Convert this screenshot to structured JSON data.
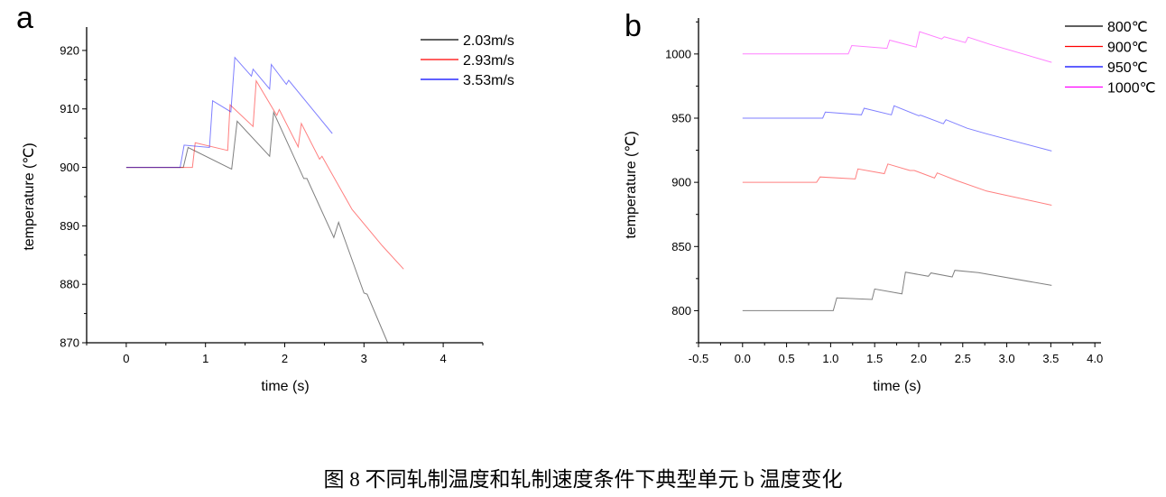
{
  "caption": "图 8  不同轧制温度和轧制速度条件下典型单元 b 温度变化",
  "chart_data": [
    {
      "panel": "a",
      "type": "line",
      "xlabel": "time (s)",
      "ylabel": "temperature (℃)",
      "xlim": [
        -0.5,
        4.5
      ],
      "ylim": [
        870,
        924
      ],
      "xticks": [
        0,
        1,
        2,
        3,
        4
      ],
      "yticks": [
        870,
        880,
        890,
        900,
        910,
        920
      ],
      "grid": false,
      "legend_position": "top-right",
      "series": [
        {
          "name": "2.03m/s",
          "color": "#000000",
          "x": [
            0,
            0.72,
            0.78,
            1.33,
            1.4,
            1.81,
            1.86,
            2.24,
            2.28,
            2.62,
            2.68,
            3.0,
            3.04,
            3.3
          ],
          "y": [
            900,
            900,
            903.4,
            899.7,
            907.9,
            901.9,
            909.4,
            898.1,
            898.1,
            888.0,
            890.6,
            878.5,
            878.3,
            870
          ]
        },
        {
          "name": "2.93m/s",
          "color": "#ff0000",
          "x": [
            0,
            0.835,
            0.87,
            1.28,
            1.31,
            1.6,
            1.64,
            1.9,
            1.93,
            2.17,
            2.21,
            2.44,
            2.47,
            2.85,
            3.23,
            3.5
          ],
          "y": [
            900,
            900,
            904.2,
            902.9,
            910.7,
            907.0,
            914.8,
            908.9,
            909.9,
            903.5,
            907.5,
            901.4,
            901.9,
            892.8,
            886.6,
            882.6
          ]
        },
        {
          "name": "3.53m/s",
          "color": "#0000ff",
          "x": [
            0,
            0.68,
            0.73,
            1.05,
            1.09,
            1.32,
            1.37,
            1.58,
            1.6,
            1.81,
            1.83,
            2.02,
            2.05,
            2.6
          ],
          "y": [
            900,
            900,
            903.8,
            903.4,
            911.4,
            909.5,
            918.8,
            915.6,
            916.8,
            913.4,
            917.6,
            914.2,
            914.9,
            905.8
          ]
        }
      ]
    },
    {
      "panel": "b",
      "type": "line",
      "xlabel": "time (s)",
      "ylabel": "temperature (℃)",
      "xlim": [
        -0.5,
        4.07
      ],
      "ylim": [
        775,
        1028
      ],
      "xticks": [
        "-0.5",
        "0.0",
        "0.5",
        "1.0",
        "1.5",
        "2.0",
        "2.5",
        "3.0",
        "3.5",
        "4.0"
      ],
      "yticks": [
        800,
        850,
        900,
        950,
        1000
      ],
      "grid": false,
      "legend_position": "top-right",
      "series": [
        {
          "name": "800℃",
          "color": "#000000",
          "x": [
            0,
            1.03,
            1.07,
            1.47,
            1.5,
            1.81,
            1.85,
            2.11,
            2.14,
            2.38,
            2.41,
            2.68,
            3.51
          ],
          "y": [
            800,
            800,
            809.9,
            808.7,
            816.9,
            813.1,
            830.0,
            826.8,
            829.4,
            826.3,
            831.4,
            829.6,
            819.7
          ]
        },
        {
          "name": "900℃",
          "color": "#ff0000",
          "x": [
            0,
            0.84,
            0.88,
            1.28,
            1.31,
            1.61,
            1.65,
            1.9,
            1.95,
            2.18,
            2.21,
            2.43,
            2.77,
            3.51
          ],
          "y": [
            900,
            900,
            904.2,
            902.6,
            910.4,
            906.8,
            914.3,
            909.2,
            909.2,
            903.3,
            907.3,
            901.4,
            893.2,
            882.2
          ]
        },
        {
          "name": "950℃",
          "color": "#0000ff",
          "x": [
            0,
            0.91,
            0.94,
            1.35,
            1.38,
            1.69,
            1.72,
            2.0,
            2.02,
            2.28,
            2.31,
            2.55,
            2.77,
            3.51
          ],
          "y": [
            950,
            950,
            954.7,
            952.6,
            957.7,
            952.6,
            959.6,
            951.9,
            952.3,
            945.6,
            948.8,
            942.1,
            937.8,
            924.4
          ]
        },
        {
          "name": "1000℃",
          "color": "#ff00ff",
          "x": [
            0,
            1.2,
            1.24,
            1.64,
            1.67,
            1.97,
            2.01,
            2.26,
            2.29,
            2.53,
            2.56,
            2.81,
            3.51
          ],
          "y": [
            1000,
            1000,
            1006.6,
            1004.4,
            1010.8,
            1005.4,
            1017.4,
            1011.7,
            1013.4,
            1008.9,
            1013.1,
            1007.5,
            993.5
          ]
        }
      ]
    }
  ]
}
